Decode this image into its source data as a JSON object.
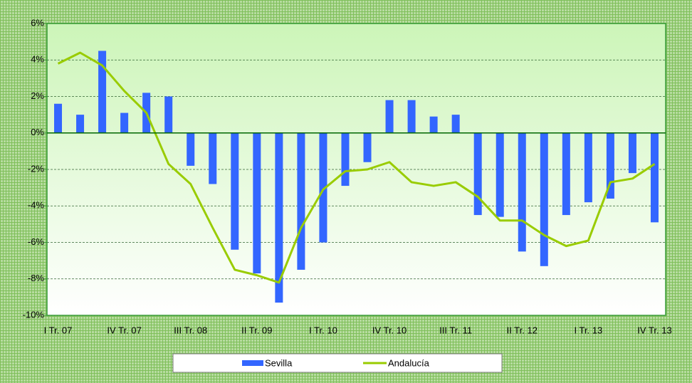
{
  "chart_data": {
    "type": "bar-line",
    "categories": [
      "I Tr. 07",
      null,
      null,
      "IV Tr. 07",
      null,
      null,
      "III Tr. 08",
      null,
      null,
      "II Tr. 09",
      null,
      null,
      "I Tr. 10",
      null,
      null,
      "IV Tr. 10",
      null,
      null,
      "III Tr. 11",
      null,
      null,
      "II Tr. 12",
      null,
      null,
      "I Tr. 13",
      null,
      null,
      "IV Tr. 13"
    ],
    "series": [
      {
        "name": "Sevilla",
        "color": "#3366ff",
        "type": "bar",
        "values": [
          1.6,
          1.0,
          4.5,
          1.1,
          2.2,
          2.0,
          -1.8,
          -2.8,
          -6.4,
          -7.7,
          -9.3,
          -7.5,
          -6.0,
          -2.9,
          -1.6,
          1.8,
          1.8,
          0.9,
          1.0,
          -4.5,
          -4.6,
          -6.5,
          -7.3,
          -4.5,
          -3.8,
          -3.6,
          -2.2,
          -4.9
        ]
      },
      {
        "name": "Andalucía",
        "color": "#99cc00",
        "type": "line",
        "values": [
          3.8,
          4.4,
          3.7,
          2.3,
          1.1,
          -1.7,
          -2.8,
          -5.2,
          -7.5,
          -7.8,
          -8.2,
          -5.2,
          -3.1,
          -2.1,
          -2.0,
          -1.6,
          -2.7,
          -2.9,
          -2.7,
          -3.5,
          -4.8,
          -4.8,
          -5.6,
          -6.2,
          -5.9,
          -2.7,
          -2.5,
          -1.7
        ]
      }
    ],
    "ylim": [
      -10,
      6
    ],
    "yticks": [
      {
        "value": -10,
        "label": "-10%"
      },
      {
        "value": -8,
        "label": "-8%"
      },
      {
        "value": -6,
        "label": "-6%"
      },
      {
        "value": -4,
        "label": "-4%"
      },
      {
        "value": -2,
        "label": "-2%"
      },
      {
        "value": 0,
        "label": "0%"
      },
      {
        "value": 2,
        "label": "2%"
      },
      {
        "value": 4,
        "label": "4%"
      },
      {
        "value": 6,
        "label": "6%"
      }
    ],
    "grid": true,
    "legend": "bottom"
  }
}
